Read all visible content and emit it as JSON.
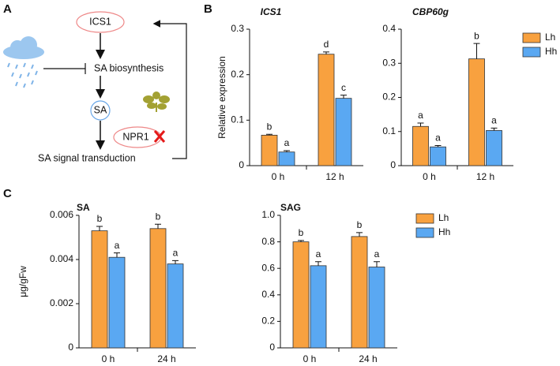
{
  "panels": [
    "A",
    "B",
    "C"
  ],
  "diagram": {
    "nodes": [
      "ICS1",
      "SA biosynthesis",
      "SA",
      "NPR1",
      "SA signal transduction"
    ]
  },
  "chart_data": [
    {
      "type": "bar",
      "title": "ICS1",
      "y_label": "Relative expression",
      "categories": [
        "0 h",
        "12 h"
      ],
      "series": [
        {
          "color": "#f8a13f",
          "values": [
            0.067,
            0.245
          ],
          "errors": [
            0.002,
            0.005
          ],
          "labels": [
            "b",
            "d"
          ]
        },
        {
          "color": "#5aa8f2",
          "values": [
            0.03,
            0.148
          ],
          "errors": [
            0.003,
            0.007
          ],
          "labels": [
            "a",
            "c"
          ]
        }
      ],
      "ylim": [
        0,
        0.3
      ],
      "yticks": [
        0,
        0.1,
        0.2,
        0.3
      ]
    },
    {
      "type": "bar",
      "title": "CBP60g",
      "categories": [
        "0 h",
        "12 h"
      ],
      "series": [
        {
          "name": "Lh",
          "color": "#f8a13f",
          "values": [
            0.115,
            0.313
          ],
          "errors": [
            0.01,
            0.045
          ],
          "labels": [
            "a",
            "b"
          ]
        },
        {
          "name": "Hh",
          "color": "#5aa8f2",
          "values": [
            0.055,
            0.103
          ],
          "errors": [
            0.004,
            0.007
          ],
          "labels": [
            "a",
            "a"
          ]
        }
      ],
      "ylim": [
        0,
        0.4
      ],
      "yticks": [
        0,
        0.1,
        0.2,
        0.3,
        0.4
      ],
      "legend": "outside right"
    },
    {
      "type": "bar",
      "title": "SA",
      "y_label": "μg/gFw",
      "categories": [
        "0 h",
        "24 h"
      ],
      "series": [
        {
          "color": "#f8a13f",
          "values": [
            0.0053,
            0.0054
          ],
          "errors": [
            0.0002,
            0.0002
          ],
          "labels": [
            "b",
            "b"
          ]
        },
        {
          "color": "#5aa8f2",
          "values": [
            0.0041,
            0.0038
          ],
          "errors": [
            0.0002,
            0.00015
          ],
          "labels": [
            "a",
            "a"
          ]
        }
      ],
      "ylim": [
        0,
        0.006
      ],
      "yticks": [
        0,
        0.002,
        0.004,
        0.006
      ]
    },
    {
      "type": "bar",
      "title": "SAG",
      "categories": [
        "0 h",
        "24 h"
      ],
      "series": [
        {
          "name": "Lh",
          "color": "#f8a13f",
          "values": [
            0.8,
            0.84
          ],
          "errors": [
            0.01,
            0.03
          ],
          "labels": [
            "b",
            "b"
          ]
        },
        {
          "name": "Hh",
          "color": "#5aa8f2",
          "values": [
            0.62,
            0.61
          ],
          "errors": [
            0.03,
            0.04
          ],
          "labels": [
            "a",
            "a"
          ]
        }
      ],
      "ylim": [
        0,
        1
      ],
      "yticks": [
        0,
        0.2,
        0.4,
        0.6,
        0.8,
        {
          "value": 1,
          "label": "1.0"
        }
      ],
      "legend": "outside right"
    }
  ]
}
